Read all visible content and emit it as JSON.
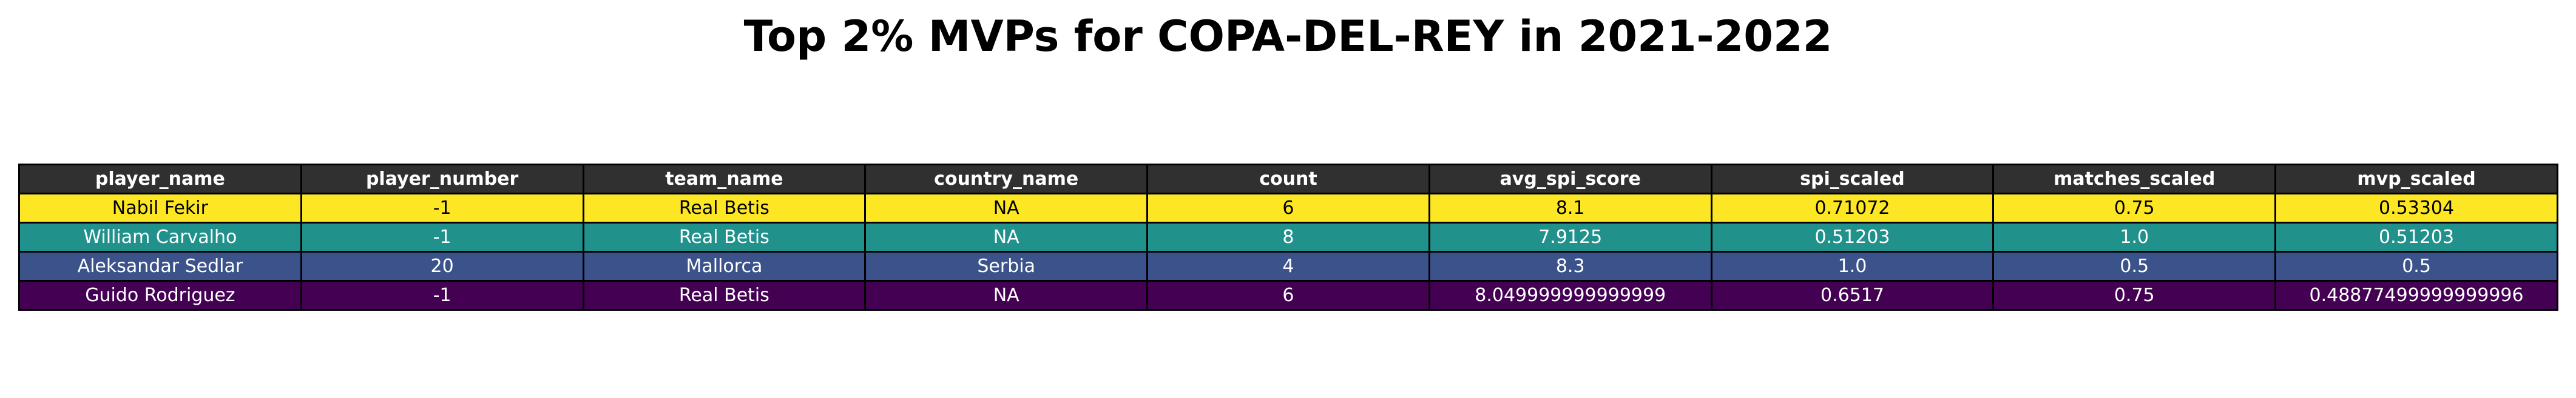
{
  "title": "Top 2% MVPs for COPA-DEL-REY in 2021-2022",
  "chart_data": {
    "type": "table",
    "title": "Top 2% MVPs for COPA-DEL-REY in 2021-2022",
    "columns": [
      "player_name",
      "player_number",
      "team_name",
      "country_name",
      "count",
      "avg_spi_score",
      "spi_scaled",
      "matches_scaled",
      "mvp_scaled"
    ],
    "rows": [
      {
        "cells": [
          "Nabil Fekir",
          "-1",
          "Real Betis",
          "NA",
          "6",
          "8.1",
          "0.71072",
          "0.75",
          "0.53304"
        ],
        "color": "#fde725",
        "text_color": "#000000"
      },
      {
        "cells": [
          "William Carvalho",
          "-1",
          "Real Betis",
          "NA",
          "8",
          "7.9125",
          "0.51203",
          "1.0",
          "0.51203"
        ],
        "color": "#21918c",
        "text_color": "#ffffff"
      },
      {
        "cells": [
          "Aleksandar Sedlar",
          "20",
          "Mallorca",
          "Serbia",
          "4",
          "8.3",
          "1.0",
          "0.5",
          "0.5"
        ],
        "color": "#3b528b",
        "text_color": "#ffffff"
      },
      {
        "cells": [
          "Guido Rodriguez",
          "-1",
          "Real Betis",
          "NA",
          "6",
          "8.049999999999999",
          "0.6517",
          "0.75",
          "0.48877499999999996"
        ],
        "color": "#440154",
        "text_color": "#ffffff"
      }
    ],
    "header_color": "#303030"
  }
}
